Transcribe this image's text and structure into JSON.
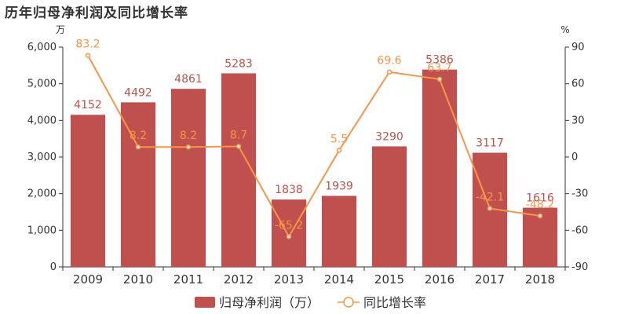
{
  "chart_data": {
    "type": "bar",
    "title": "历年归母净利润及同比增长率",
    "categories": [
      "2009",
      "2010",
      "2011",
      "2012",
      "2013",
      "2014",
      "2015",
      "2016",
      "2017",
      "2018"
    ],
    "series": [
      {
        "name": "归母净利润（万）",
        "type": "bar",
        "axis": "left",
        "color": "#c0504d",
        "values": [
          4152,
          4492,
          4861,
          5283,
          1838,
          1939,
          3290,
          5386,
          3117,
          1616
        ]
      },
      {
        "name": "同比增长率",
        "type": "line",
        "axis": "right",
        "color": "#f79646",
        "values": [
          83.2,
          8.2,
          8.2,
          8.7,
          -65.2,
          5.5,
          69.6,
          63.7,
          -42.1,
          -48.2
        ]
      }
    ],
    "y_left": {
      "unit": "万",
      "range": [
        0,
        6000
      ],
      "ticks": [
        "0",
        "1,000",
        "2,000",
        "3,000",
        "4,000",
        "5,000",
        "6,000"
      ]
    },
    "y_right": {
      "unit": "%",
      "range": [
        -90,
        90
      ],
      "ticks": [
        "-90",
        "-60",
        "-30",
        "0",
        "30",
        "60",
        "90"
      ]
    },
    "legend_position": "bottom",
    "grid": false
  }
}
